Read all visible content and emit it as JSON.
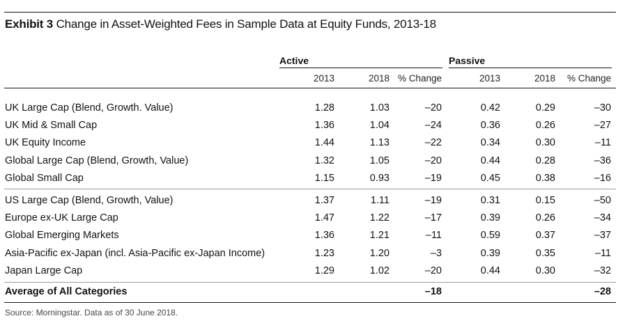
{
  "title": {
    "exhibit": "Exhibit 3",
    "text": "Change in Asset-Weighted Fees in Sample Data at Equity Funds, 2013-18"
  },
  "groups": {
    "active": "Active",
    "passive": "Passive"
  },
  "columns": [
    "2013",
    "2018",
    "% Change",
    "2013",
    "2018",
    "% Change"
  ],
  "rows": [
    {
      "label": "UK Large Cap (Blend, Growth. Value)",
      "values": [
        "1.28",
        "1.03",
        "–20",
        "0.42",
        "0.29",
        "–30"
      ]
    },
    {
      "label": "UK Mid & Small Cap",
      "values": [
        "1.36",
        "1.04",
        "–24",
        "0.36",
        "0.26",
        "–27"
      ]
    },
    {
      "label": "UK Equity Income",
      "values": [
        "1.44",
        "1.13",
        "–22",
        "0.34",
        "0.30",
        "–11"
      ]
    },
    {
      "label": "Global Large Cap (Blend, Growth, Value)",
      "values": [
        "1.32",
        "1.05",
        "–20",
        "0.44",
        "0.28",
        "–36"
      ]
    },
    {
      "label": "Global Small Cap",
      "values": [
        "1.15",
        "0.93",
        "–19",
        "0.45",
        "0.38",
        "–16"
      ]
    },
    {
      "label": "US Large Cap (Blend, Growth, Value)",
      "values": [
        "1.37",
        "1.11",
        "–19",
        "0.31",
        "0.15",
        "–50"
      ]
    },
    {
      "label": "Europe ex-UK Large Cap",
      "values": [
        "1.47",
        "1.22",
        "–17",
        "0.39",
        "0.26",
        "–34"
      ]
    },
    {
      "label": "Global Emerging Markets",
      "values": [
        "1.36",
        "1.21",
        "–11",
        "0.59",
        "0.37",
        "–37"
      ]
    },
    {
      "label": "Asia-Pacific ex-Japan (incl. Asia-Pacific ex-Japan Income)",
      "values": [
        "1.23",
        "1.20",
        "–3",
        "0.39",
        "0.35",
        "–11"
      ]
    },
    {
      "label": "Japan Large Cap",
      "values": [
        "1.29",
        "1.02",
        "–20",
        "0.44",
        "0.30",
        "–32"
      ]
    }
  ],
  "average": {
    "label": "Average of All Categories",
    "active_change": "–18",
    "passive_change": "–28"
  },
  "source": "Source: Morningstar. Data as of 30 June 2018."
}
